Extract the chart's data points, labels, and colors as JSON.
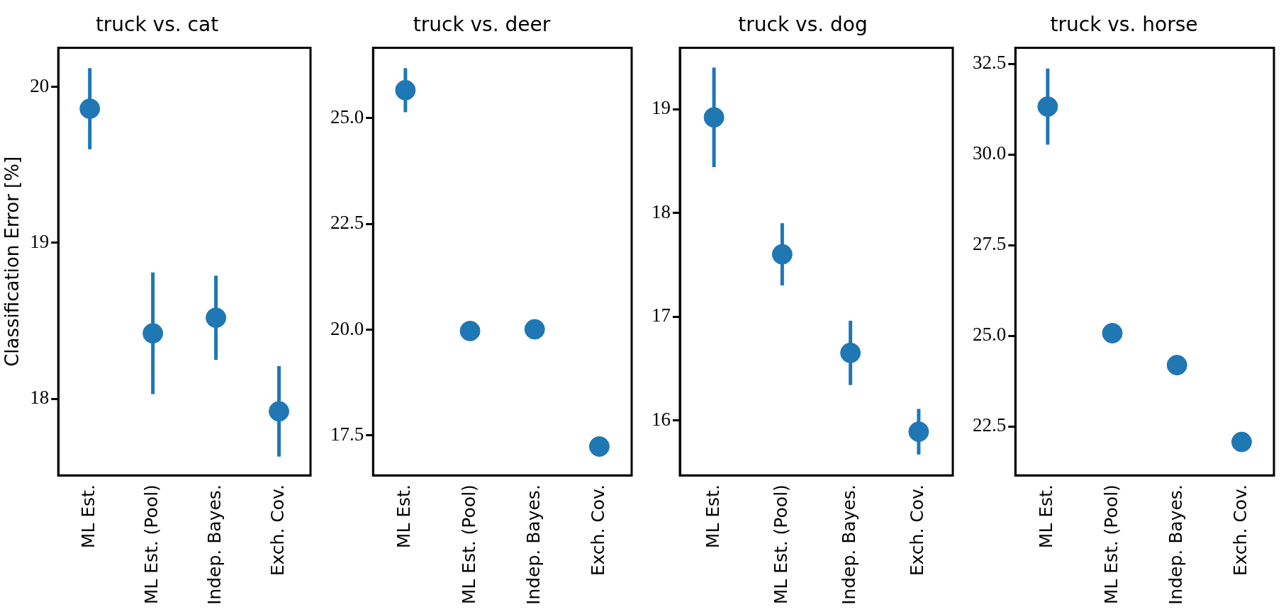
{
  "chart_data": [
    {
      "type": "scatter",
      "title": "truck vs. cat",
      "ylabel": "Classification Error [%]",
      "categories": [
        "ML Est.",
        "ML Est. (Pool)",
        "Indep. Bayes.",
        "Exch. Cov."
      ],
      "values": [
        19.86,
        18.42,
        18.52,
        17.92
      ],
      "errors": [
        0.26,
        0.39,
        0.27,
        0.29
      ],
      "color": "#1f77b4",
      "ylim": [
        17.51,
        20.25
      ],
      "yticks": [
        18,
        19,
        20
      ],
      "marker": "circle",
      "grid": false
    },
    {
      "type": "scatter",
      "title": "truck vs. deer",
      "categories": [
        "ML Est.",
        "ML Est. (Pool)",
        "Indep. Bayes.",
        "Exch. Cov."
      ],
      "values": [
        25.66,
        19.97,
        20.01,
        17.24
      ],
      "errors": [
        0.52,
        null,
        null,
        null
      ],
      "color": "#1f77b4",
      "ylim": [
        16.56,
        26.66
      ],
      "yticks": [
        17.5,
        {
          "value": 20,
          "label": "20.0"
        },
        22.5,
        {
          "value": 25,
          "label": "25.0"
        }
      ],
      "marker": "circle",
      "grid": false
    },
    {
      "type": "scatter",
      "title": "truck vs. dog",
      "categories": [
        "ML Est.",
        "ML Est. (Pool)",
        "Indep. Bayes.",
        "Exch. Cov."
      ],
      "values": [
        18.92,
        17.6,
        16.65,
        15.89
      ],
      "errors": [
        0.48,
        0.3,
        0.31,
        0.22
      ],
      "color": "#1f77b4",
      "ylim": [
        15.47,
        19.59
      ],
      "yticks": [
        16,
        17,
        18,
        19
      ],
      "marker": "circle",
      "grid": false
    },
    {
      "type": "scatter",
      "title": "truck vs. horse",
      "categories": [
        "ML Est.",
        "ML Est. (Pool)",
        "Indep. Bayes.",
        "Exch. Cov."
      ],
      "values": [
        31.32,
        25.07,
        24.19,
        22.07
      ],
      "errors": [
        1.05,
        null,
        null,
        null
      ],
      "color": "#1f77b4",
      "ylim": [
        21.15,
        32.94
      ],
      "yticks": [
        22.5,
        {
          "value": 25,
          "label": "25.0"
        },
        27.5,
        {
          "value": 30,
          "label": "30.0"
        },
        32.5
      ],
      "marker": "circle",
      "grid": false
    }
  ]
}
